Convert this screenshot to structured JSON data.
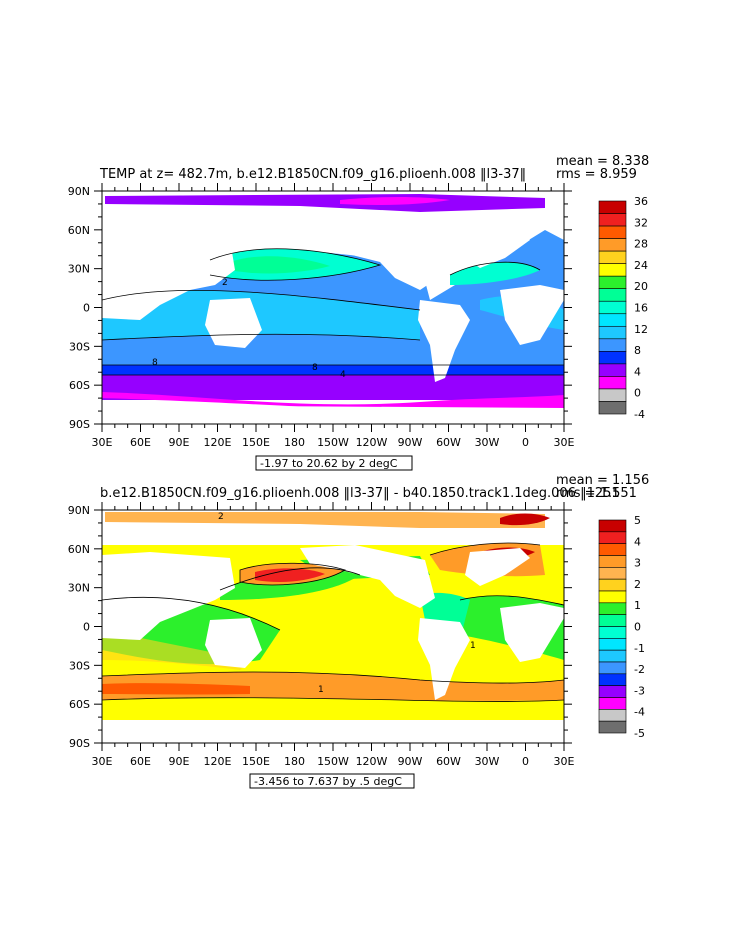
{
  "chart_data": [
    {
      "type": "heatmap",
      "title": "TEMP at z= 482.7m, b.e12.B1850CN.f09_g16.plioenh.008 ‖l3-37‖",
      "stats": {
        "mean": "mean = 8.338",
        "rms": "rms = 8.959"
      },
      "subtitle": "-1.97 to 20.62 by 2 degC",
      "x_ticks": [
        "30E",
        "60E",
        "90E",
        "120E",
        "150E",
        "180",
        "150W",
        "120W",
        "90W",
        "60W",
        "30W",
        "0",
        "30E"
      ],
      "y_ticks": [
        "90N",
        "60N",
        "30N",
        "0",
        "30S",
        "60S",
        "90S"
      ],
      "colorbar": {
        "labels": [
          "36",
          "32",
          "28",
          "24",
          "20",
          "16",
          "12",
          "8",
          "4",
          "0",
          "-4"
        ],
        "colors": [
          "#c80000",
          "#f02020",
          "#ff5a00",
          "#ff9b28",
          "#ffd21e",
          "#ffff00",
          "#2cf02c",
          "#00ff96",
          "#00ffd2",
          "#00e6ff",
          "#1ec8ff",
          "#3c96ff",
          "#0032ff",
          "#9600ff",
          "#ff00ff",
          "#c8c8c8",
          "#6e6e6e"
        ]
      },
      "contour_labels": [
        "2",
        "8",
        "8",
        "4"
      ]
    },
    {
      "type": "heatmap",
      "title": "b.e12.B1850CN.f09_g16.plioenh.008 ‖l3-37‖ - b40.1850.track1.1deg.006 ‖1251",
      "stats": {
        "mean": "mean = 1.156",
        "rms": "rms = 1.551"
      },
      "subtitle": "-3.456 to 7.637 by .5 degC",
      "x_ticks": [
        "30E",
        "60E",
        "90E",
        "120E",
        "150E",
        "180",
        "150W",
        "120W",
        "90W",
        "60W",
        "30W",
        "0",
        "30E"
      ],
      "y_ticks": [
        "90N",
        "60N",
        "30N",
        "0",
        "30S",
        "60S",
        "90S"
      ],
      "colorbar": {
        "labels": [
          "5",
          "4",
          "3",
          "2",
          "1",
          "0",
          "-1",
          "-2",
          "-3",
          "-4",
          "-5"
        ],
        "colors": [
          "#c80000",
          "#f02020",
          "#ff5a00",
          "#ff9b28",
          "#ffb450",
          "#ffd21e",
          "#ffff00",
          "#2cf02c",
          "#00ff96",
          "#00ffd2",
          "#00e6ff",
          "#1ec8ff",
          "#3c96ff",
          "#0032ff",
          "#9600ff",
          "#ff00ff",
          "#c8c8c8",
          "#6e6e6e"
        ]
      },
      "contour_labels": [
        "2",
        "1",
        "1"
      ]
    }
  ]
}
